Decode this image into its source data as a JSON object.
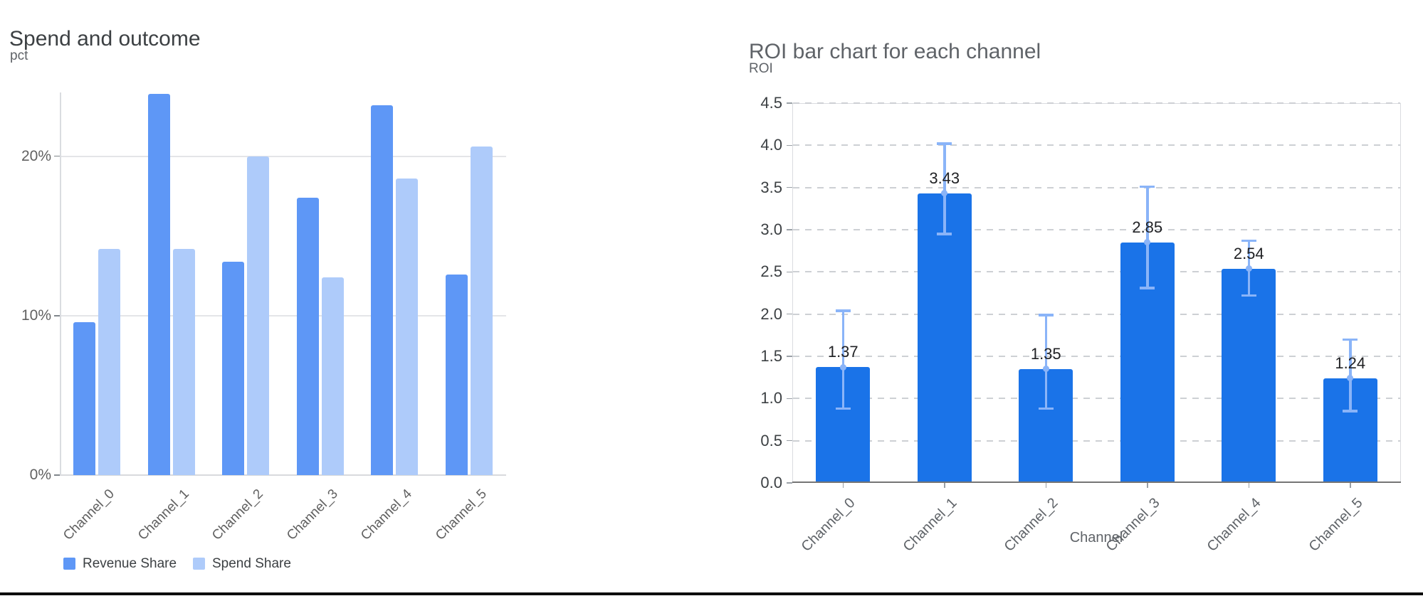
{
  "page": {
    "background": "#ffffff",
    "bottom_rule_color": "#0c0c0c"
  },
  "chart_data": [
    {
      "id": "spend-and-outcome",
      "type": "bar",
      "title": "Spend and outcome",
      "ylabel": "pct",
      "xlabel": "",
      "categories": [
        "Channel_0",
        "Channel_1",
        "Channel_2",
        "Channel_3",
        "Channel_4",
        "Channel_5"
      ],
      "series": [
        {
          "name": "Revenue Share",
          "color": "#5e97f6",
          "values": [
            9.6,
            23.9,
            13.4,
            17.4,
            23.2,
            12.6
          ]
        },
        {
          "name": "Spend Share",
          "color": "#aecbfa",
          "values": [
            14.2,
            14.2,
            20.0,
            12.4,
            18.6,
            20.6
          ]
        }
      ],
      "y_ticks": [
        {
          "label": "0%",
          "value": 0
        },
        {
          "label": "10%",
          "value": 10
        },
        {
          "label": "20%",
          "value": 20
        }
      ],
      "ylim": [
        0,
        24
      ],
      "grid": "solid-horizontal",
      "legend_position": "bottom-left"
    },
    {
      "id": "roi-by-channel",
      "type": "bar",
      "title": "ROI bar chart for each channel",
      "ylabel": "ROI",
      "xlabel": "Channel",
      "categories": [
        "Channel_0",
        "Channel_1",
        "Channel_2",
        "Channel_3",
        "Channel_4",
        "Channel_5"
      ],
      "values": [
        1.37,
        3.43,
        1.35,
        2.85,
        2.54,
        1.24
      ],
      "bar_labels": [
        "1.37",
        "3.43",
        "1.35",
        "2.85",
        "2.54",
        "1.24"
      ],
      "error_low": [
        0.88,
        2.95,
        0.88,
        2.31,
        2.22,
        0.85
      ],
      "error_high": [
        2.04,
        4.02,
        1.99,
        3.51,
        2.87,
        1.7
      ],
      "bar_color": "#1a73e8",
      "error_color": "#8ab4f8",
      "y_ticks": [
        {
          "label": "0.0",
          "value": 0.0
        },
        {
          "label": "0.5",
          "value": 0.5
        },
        {
          "label": "1.0",
          "value": 1.0
        },
        {
          "label": "1.5",
          "value": 1.5
        },
        {
          "label": "2.0",
          "value": 2.0
        },
        {
          "label": "2.5",
          "value": 2.5
        },
        {
          "label": "3.0",
          "value": 3.0
        },
        {
          "label": "3.5",
          "value": 3.5
        },
        {
          "label": "4.0",
          "value": 4.0
        },
        {
          "label": "4.5",
          "value": 4.5
        }
      ],
      "ylim": [
        0,
        4.5
      ],
      "grid": "dashed-horizontal",
      "legend_position": "none"
    }
  ]
}
